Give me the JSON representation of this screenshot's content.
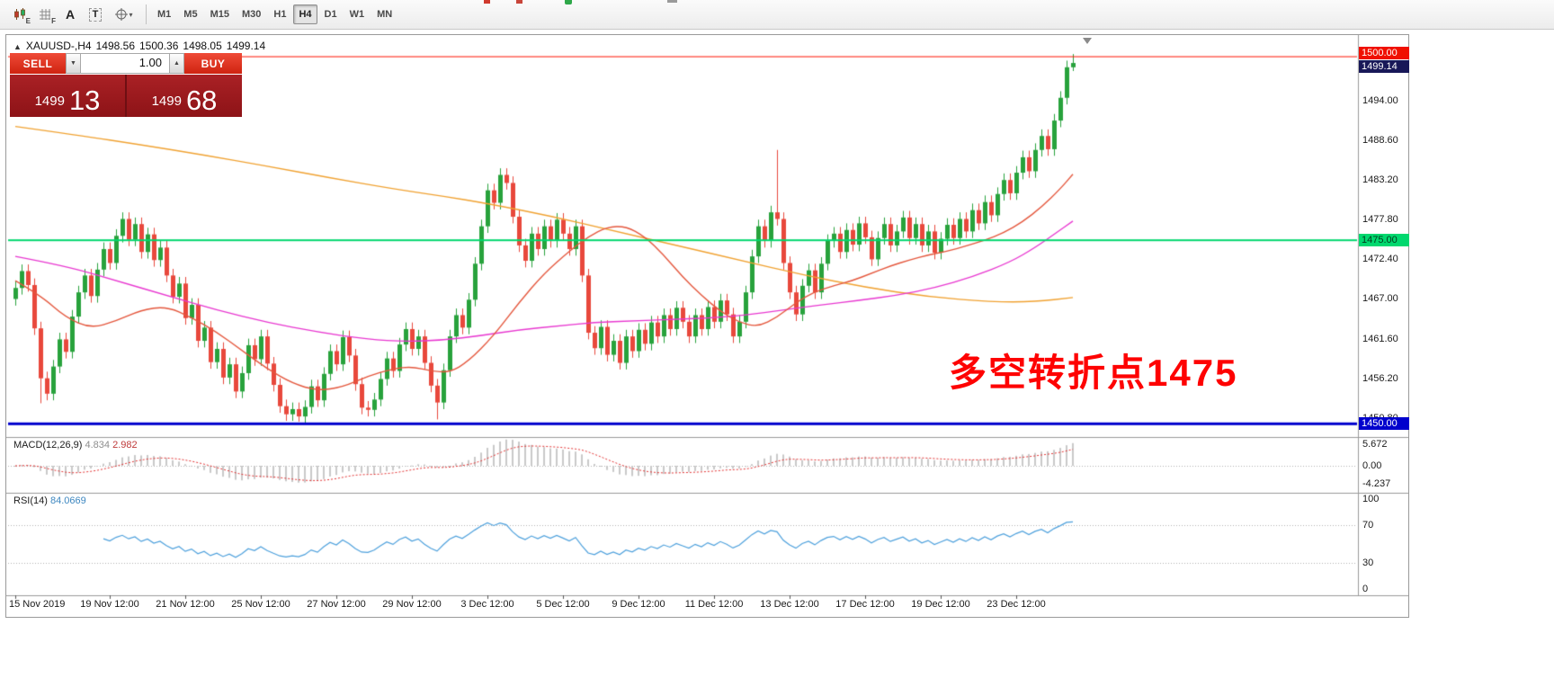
{
  "toolbar": {
    "icons": {
      "chart_mode_sub": "E",
      "grid_mode_sub": "F",
      "text_label": "A",
      "text_tool": "T"
    },
    "timeframes": [
      "M1",
      "M5",
      "M15",
      "M30",
      "H1",
      "H4",
      "D1",
      "W1",
      "MN"
    ],
    "active_timeframe": "H4"
  },
  "chart_header": {
    "marker": "▲",
    "symbol_period": "XAUUSD-,H4",
    "open": "1498.56",
    "high": "1500.36",
    "low": "1498.05",
    "close": "1499.14"
  },
  "trade_panel": {
    "sell_label": "SELL",
    "buy_label": "BUY",
    "volume": "1.00",
    "sell_price_main": "1499",
    "sell_price_pips": "13",
    "buy_price_main": "1499",
    "buy_price_pips": "68"
  },
  "annotation": {
    "text": "多空转折点1475",
    "color": "#ff0000"
  },
  "indicators": {
    "macd": {
      "title": "MACD(12,26,9)",
      "value1": "4.834",
      "value2": "2.982",
      "scale_labels": [
        "5.672",
        "0.00",
        "-4.237"
      ]
    },
    "rsi": {
      "title": "RSI(14)",
      "value": "84.0669",
      "scale_labels": [
        "100",
        "70",
        "30",
        "0"
      ]
    }
  },
  "chart_data": {
    "type": "candlestick",
    "symbol": "XAUUSD-",
    "period": "H4",
    "ylim": [
      1448.2,
      1502.7
    ],
    "price_tick_labels": [
      "1494.00",
      "1488.60",
      "1483.20",
      "1477.80",
      "1472.40",
      "1467.00",
      "1461.60",
      "1456.20",
      "1450.80"
    ],
    "price_tags": [
      {
        "text": "1500.00",
        "type": "resistance"
      },
      {
        "text": "1499.14",
        "type": "bid"
      },
      {
        "text": "1475.00",
        "type": "pivot"
      },
      {
        "text": "1450.00",
        "type": "support"
      }
    ],
    "time_tick_labels": [
      {
        "text": "15 Nov 2019",
        "i": 0
      },
      {
        "text": "19 Nov 12:00",
        "i": 15
      },
      {
        "text": "21 Nov 12:00",
        "i": 27
      },
      {
        "text": "25 Nov 12:00",
        "i": 39
      },
      {
        "text": "27 Nov 12:00",
        "i": 51
      },
      {
        "text": "29 Nov 12:00",
        "i": 63
      },
      {
        "text": "3 Dec 12:00",
        "i": 75
      },
      {
        "text": "5 Dec 12:00",
        "i": 87
      },
      {
        "text": "9 Dec 12:00",
        "i": 99
      },
      {
        "text": "11 Dec 12:00",
        "i": 111
      },
      {
        "text": "13 Dec 12:00",
        "i": 123
      },
      {
        "text": "17 Dec 12:00",
        "i": 135
      },
      {
        "text": "19 Dec 12:00",
        "i": 147
      },
      {
        "text": "23 Dec 12:00",
        "i": 159
      }
    ],
    "candles": {
      "first_open": 1467.0,
      "default_wick": 0.9,
      "closes": [
        1468.5,
        1470.8,
        1468.9,
        1463.0,
        1456.2,
        1454.1,
        1457.8,
        1461.5,
        1459.8,
        1464.6,
        1467.9,
        1470.2,
        1467.4,
        1471.0,
        1473.8,
        1471.9,
        1475.6,
        1477.9,
        1475.1,
        1477.2,
        1473.4,
        1475.8,
        1472.3,
        1474.0,
        1470.2,
        1467.3,
        1469.1,
        1464.4,
        1466.2,
        1461.3,
        1463.1,
        1458.4,
        1460.2,
        1456.3,
        1458.1,
        1454.4,
        1456.9,
        1460.7,
        1458.8,
        1461.9,
        1458.2,
        1455.3,
        1452.4,
        1451.3,
        1452.0,
        1451.0,
        1452.3,
        1455.1,
        1453.2,
        1456.8,
        1459.9,
        1458.1,
        1461.8,
        1459.3,
        1455.4,
        1452.2,
        1451.9,
        1453.3,
        1456.1,
        1458.9,
        1457.2,
        1460.8,
        1462.9,
        1460.2,
        1461.9,
        1458.3,
        1455.2,
        1452.9,
        1457.3,
        1461.9,
        1464.8,
        1463.1,
        1466.9,
        1471.8,
        1476.9,
        1481.8,
        1480.1,
        1483.9,
        1482.8,
        1478.2,
        1474.3,
        1472.2,
        1475.9,
        1473.8,
        1476.9,
        1474.9,
        1477.8,
        1475.9,
        1473.8,
        1476.9,
        1470.2,
        1462.4,
        1460.3,
        1463.2,
        1459.4,
        1461.3,
        1458.3,
        1461.9,
        1459.9,
        1462.8,
        1460.9,
        1463.8,
        1461.9,
        1464.8,
        1462.9,
        1465.8,
        1463.9,
        1461.9,
        1464.8,
        1462.9,
        1465.9,
        1463.9,
        1466.8,
        1464.9,
        1461.9,
        1463.9,
        1467.9,
        1472.8,
        1476.9,
        1474.9,
        1478.8,
        1477.9,
        1471.9,
        1467.9,
        1464.9,
        1468.8,
        1470.9,
        1467.9,
        1471.8,
        1474.9,
        1475.9,
        1473.4,
        1476.4,
        1474.4,
        1477.3,
        1475.4,
        1472.4,
        1475.3,
        1477.2,
        1474.3,
        1476.2,
        1478.1,
        1475.3,
        1477.2,
        1474.3,
        1476.2,
        1473.3,
        1475.2,
        1477.1,
        1475.3,
        1477.9,
        1476.2,
        1479.1,
        1477.3,
        1480.2,
        1478.4,
        1481.3,
        1483.2,
        1481.4,
        1484.2,
        1486.3,
        1484.4,
        1487.3,
        1489.2,
        1487.4,
        1491.3,
        1494.4,
        1498.56,
        1499.14
      ],
      "overrides": {
        "4": {
          "low": 1452.8
        },
        "45": {
          "low": 1450.3
        },
        "67": {
          "low": 1450.6
        },
        "121": {
          "high": 1487.3
        },
        "168": {
          "high": 1500.36,
          "low": 1498.05
        }
      }
    },
    "moving_averages": [
      {
        "name": "ma-slow-orange",
        "color": "#f0a232",
        "points": [
          [
            0,
            1490.5
          ],
          [
            10,
            1489.3
          ],
          [
            20,
            1488.0
          ],
          [
            30,
            1486.6
          ],
          [
            40,
            1485.1
          ],
          [
            50,
            1483.5
          ],
          [
            60,
            1482.0
          ],
          [
            68,
            1481.0
          ],
          [
            75,
            1480.0
          ],
          [
            85,
            1478.3
          ],
          [
            95,
            1476.3
          ],
          [
            105,
            1474.3
          ],
          [
            115,
            1472.3
          ],
          [
            125,
            1470.3
          ],
          [
            135,
            1468.6
          ],
          [
            145,
            1467.3
          ],
          [
            155,
            1466.6
          ],
          [
            162,
            1466.6
          ],
          [
            168,
            1467.2
          ]
        ]
      },
      {
        "name": "ma-medium-magenta",
        "color": "#e838d0",
        "points": [
          [
            0,
            1472.8
          ],
          [
            8,
            1471.5
          ],
          [
            16,
            1469.5
          ],
          [
            24,
            1467.5
          ],
          [
            32,
            1465.5
          ],
          [
            40,
            1463.8
          ],
          [
            48,
            1462.5
          ],
          [
            56,
            1461.5
          ],
          [
            62,
            1461.2
          ],
          [
            68,
            1461.4
          ],
          [
            74,
            1462.0
          ],
          [
            80,
            1462.8
          ],
          [
            86,
            1463.3
          ],
          [
            92,
            1463.8
          ],
          [
            98,
            1464.0
          ],
          [
            104,
            1464.2
          ],
          [
            110,
            1464.4
          ],
          [
            116,
            1464.8
          ],
          [
            122,
            1465.5
          ],
          [
            128,
            1466.2
          ],
          [
            134,
            1466.8
          ],
          [
            140,
            1467.5
          ],
          [
            146,
            1468.5
          ],
          [
            152,
            1470.0
          ],
          [
            158,
            1472.0
          ],
          [
            162,
            1474.0
          ],
          [
            165,
            1475.8
          ],
          [
            168,
            1477.6
          ]
        ]
      },
      {
        "name": "ma-fast-red",
        "color": "#e4573d",
        "points": [
          [
            0,
            1469.5
          ],
          [
            4,
            1467.5
          ],
          [
            8,
            1464.5
          ],
          [
            12,
            1463.0
          ],
          [
            16,
            1464.0
          ],
          [
            20,
            1465.5
          ],
          [
            24,
            1466.0
          ],
          [
            28,
            1464.5
          ],
          [
            32,
            1462.5
          ],
          [
            36,
            1460.0
          ],
          [
            40,
            1457.5
          ],
          [
            44,
            1455.5
          ],
          [
            48,
            1454.5
          ],
          [
            52,
            1455.0
          ],
          [
            56,
            1456.5
          ],
          [
            60,
            1457.5
          ],
          [
            63,
            1457.8
          ],
          [
            66,
            1457.2
          ],
          [
            69,
            1457.0
          ],
          [
            72,
            1458.5
          ],
          [
            76,
            1462.0
          ],
          [
            80,
            1466.5
          ],
          [
            84,
            1470.5
          ],
          [
            88,
            1473.5
          ],
          [
            91,
            1475.5
          ],
          [
            94,
            1476.8
          ],
          [
            97,
            1476.9
          ],
          [
            100,
            1475.5
          ],
          [
            103,
            1473.0
          ],
          [
            106,
            1470.0
          ],
          [
            109,
            1467.5
          ],
          [
            112,
            1465.3
          ],
          [
            115,
            1463.8
          ],
          [
            118,
            1463.2
          ],
          [
            121,
            1464.5
          ],
          [
            124,
            1466.5
          ],
          [
            127,
            1468.0
          ],
          [
            130,
            1468.8
          ],
          [
            133,
            1469.5
          ],
          [
            136,
            1470.5
          ],
          [
            139,
            1471.5
          ],
          [
            142,
            1472.3
          ],
          [
            145,
            1473.0
          ],
          [
            148,
            1473.5
          ],
          [
            151,
            1474.2
          ],
          [
            154,
            1475.0
          ],
          [
            157,
            1476.0
          ],
          [
            160,
            1477.5
          ],
          [
            163,
            1479.5
          ],
          [
            166,
            1482.0
          ],
          [
            168,
            1484.0
          ]
        ]
      }
    ],
    "hlines": [
      {
        "price": 1500.0,
        "color": "#ff1400",
        "width": 1
      },
      {
        "price": 1475.0,
        "color": "#00d86e",
        "width": 2
      },
      {
        "price": 1450.0,
        "color": "#0000cd",
        "width": 3
      }
    ],
    "candle_colors": {
      "bull": "#28a23c",
      "bear": "#e8483c"
    },
    "macd": {
      "hist_color": "#c9c9c9",
      "signal_color": "#e23333",
      "scale_max": 5.672,
      "scale_min": -4.237
    },
    "rsi": {
      "line_color": "#4da0dc",
      "levels": [
        70,
        30
      ]
    }
  }
}
